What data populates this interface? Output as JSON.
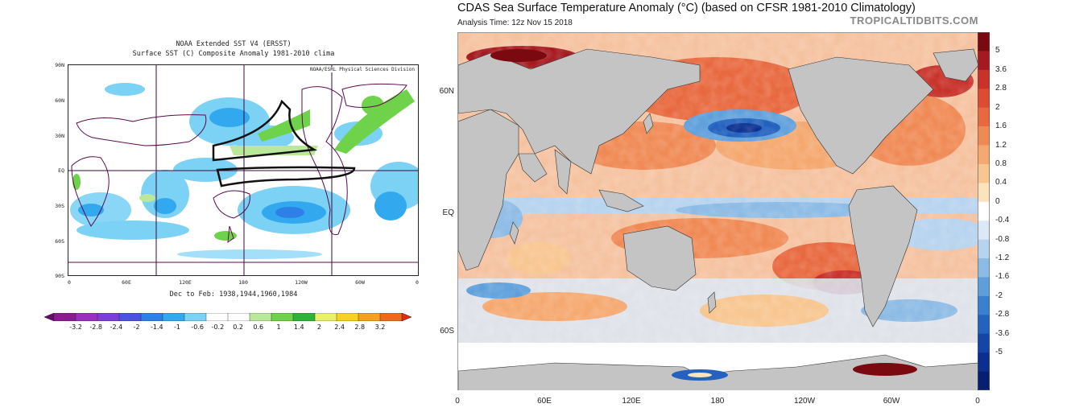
{
  "left": {
    "title_line1": "NOAA Extended SST V4 (ERSST)",
    "title_line2": "Surface SST (C) Composite Anomaly 1981-2010 clima",
    "credit": "NOAA/ESRL Physical Sciences Division",
    "caption": "Dec to Feb: 1938,1944,1960,1984",
    "lat_labels": [
      "90N",
      "60N",
      "30N",
      "EQ",
      "30S",
      "60S",
      "90S"
    ],
    "lon_labels": [
      "0",
      "60E",
      "120E",
      "180",
      "120W",
      "60W",
      "0"
    ],
    "colorbar_labels": [
      "-3.2",
      "-2.8",
      "-2.4",
      "-2",
      "-1.4",
      "-1",
      "-0.6",
      "-0.2",
      "0.2",
      "0.6",
      "1",
      "1.4",
      "2",
      "2.4",
      "2.8",
      "3.2"
    ],
    "colorbar_colors": [
      "#6a0a6a",
      "#8a1c8f",
      "#9b30c0",
      "#7a3fd9",
      "#4b53e0",
      "#2f7fe8",
      "#32a8ef",
      "#7cd2f5",
      "#ffffff",
      "#ffffff",
      "#b9e89a",
      "#6fd24b",
      "#2fb33a",
      "#e8f06a",
      "#f5d31e",
      "#f5a11e",
      "#ef6a1a",
      "#e02a12"
    ]
  },
  "right": {
    "title": "CDAS Sea Surface Temperature Anomaly (°C) (based on CFSR 1981-2010 Climatology)",
    "subtitle": "Analysis Time: 12z Nov 15 2018",
    "brand": "TROPICALTIDBITS.COM",
    "lat_labels": [
      "60N",
      "EQ",
      "60S"
    ],
    "lon_labels": [
      "0",
      "60E",
      "120E",
      "180",
      "120W",
      "60W",
      "0"
    ],
    "colorbar_labels": [
      "5",
      "3.6",
      "2.8",
      "2",
      "1.6",
      "1.2",
      "0.8",
      "0.4",
      "0",
      "-0.4",
      "-0.8",
      "-1.2",
      "-1.6",
      "-2",
      "-2.8",
      "-3.6",
      "-5"
    ],
    "colorbar_colors": [
      "#7a0a10",
      "#a51a20",
      "#c8322a",
      "#dd4b33",
      "#e8693f",
      "#f08a55",
      "#f5a86f",
      "#f8c690",
      "#fbe3bb",
      "#ffffff",
      "#dbe9f6",
      "#b7d3ee",
      "#8cbbe5",
      "#5e9fdb",
      "#3a80d0",
      "#2462bf",
      "#1346a8",
      "#0a2f8f",
      "#061f70"
    ]
  }
}
